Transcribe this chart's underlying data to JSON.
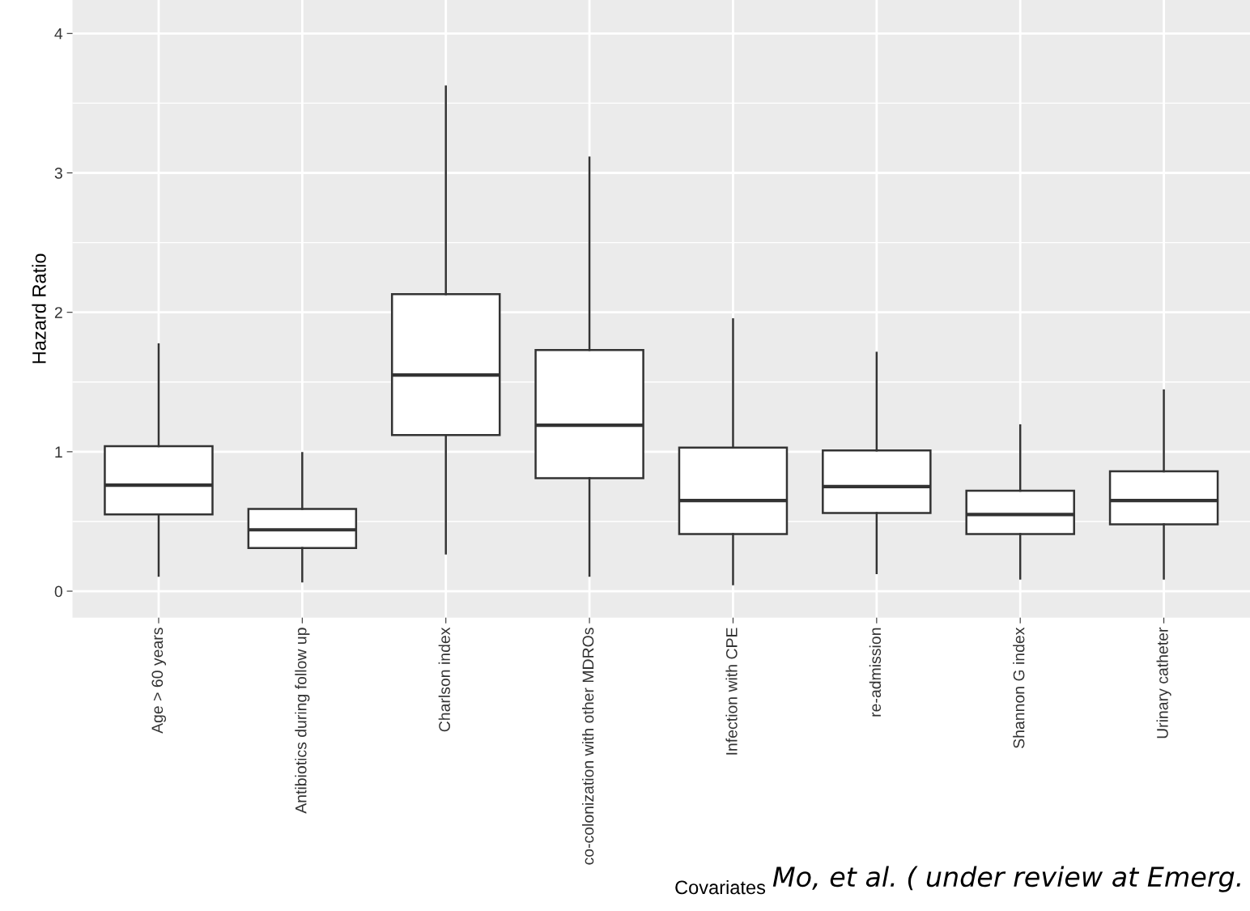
{
  "chart_data": {
    "type": "box",
    "categories": [
      "Age > 60 years",
      "Antibiotics during follow up",
      "Charlson index",
      "co-colonization with other MDROs",
      "Infection with CPE",
      "re-admission",
      "Shannon G index",
      "Urinary catheter"
    ],
    "boxes": [
      {
        "low": 0.11,
        "q1": 0.55,
        "median": 0.76,
        "q3": 1.04,
        "high": 1.77
      },
      {
        "low": 0.07,
        "q1": 0.31,
        "median": 0.44,
        "q3": 0.59,
        "high": 0.99
      },
      {
        "low": 0.27,
        "q1": 1.12,
        "median": 1.55,
        "q3": 2.13,
        "high": 3.62
      },
      {
        "low": 0.11,
        "q1": 0.81,
        "median": 1.19,
        "q3": 1.73,
        "high": 3.11
      },
      {
        "low": 0.05,
        "q1": 0.41,
        "median": 0.65,
        "q3": 1.03,
        "high": 1.95
      },
      {
        "low": 0.13,
        "q1": 0.56,
        "median": 0.75,
        "q3": 1.01,
        "high": 1.71
      },
      {
        "low": 0.09,
        "q1": 0.41,
        "median": 0.55,
        "q3": 0.72,
        "high": 1.19
      },
      {
        "low": 0.09,
        "q1": 0.48,
        "median": 0.65,
        "q3": 0.86,
        "high": 1.44
      }
    ],
    "ylim": [
      -0.19,
      4.24
    ],
    "yticks": [
      0,
      1,
      2,
      3,
      4
    ],
    "xlabel": "Covariates",
    "ylabel": "Hazard Ratio",
    "grid": true,
    "legend": false,
    "annotations": [
      "Mo, et al. ( under review at Emerg."
    ]
  }
}
